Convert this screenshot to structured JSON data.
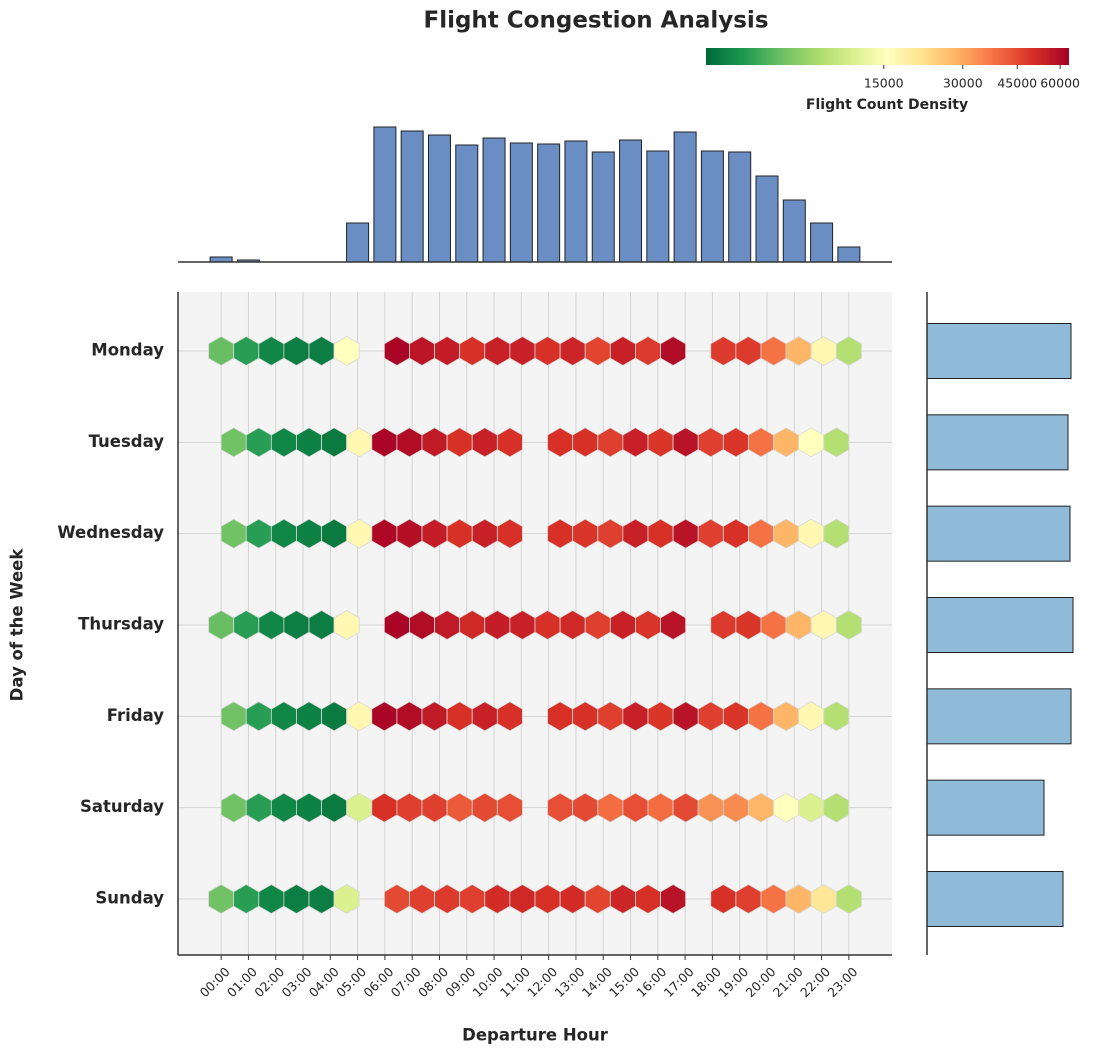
{
  "chart_data": {
    "type": "hexbin",
    "title": "Flight Congestion Analysis",
    "x_label": "Departure Hour",
    "y_label": "Day of the Week",
    "categories": [
      "Monday",
      "Tuesday",
      "Wednesday",
      "Thursday",
      "Friday",
      "Saturday",
      "Sunday"
    ],
    "xlim": [
      -1.58,
      24.58
    ],
    "xticks": [
      {
        "value": 0,
        "label": "00:00"
      },
      {
        "value": 1,
        "label": "01:00"
      },
      {
        "value": 2,
        "label": "02:00"
      },
      {
        "value": 3,
        "label": "03:00"
      },
      {
        "value": 4,
        "label": "04:00"
      },
      {
        "value": 5,
        "label": "05:00"
      },
      {
        "value": 6,
        "label": "06:00"
      },
      {
        "value": 7,
        "label": "07:00"
      },
      {
        "value": 8,
        "label": "08:00"
      },
      {
        "value": 9,
        "label": "09:00"
      },
      {
        "value": 10,
        "label": "10:00"
      },
      {
        "value": 11,
        "label": "11:00"
      },
      {
        "value": 12,
        "label": "12:00"
      },
      {
        "value": 13,
        "label": "13:00"
      },
      {
        "value": 14,
        "label": "14:00"
      },
      {
        "value": 15,
        "label": "15:00"
      },
      {
        "value": 16,
        "label": "16:00"
      },
      {
        "value": 17,
        "label": "17:00"
      },
      {
        "value": 18,
        "label": "18:00"
      },
      {
        "value": 19,
        "label": "19:00"
      },
      {
        "value": 20,
        "label": "20:00"
      },
      {
        "value": 21,
        "label": "21:00"
      },
      {
        "value": 22,
        "label": "22:00"
      },
      {
        "value": 23,
        "label": "23:00"
      }
    ],
    "grid": true,
    "rows": [
      {
        "x": [
          0,
          0.92,
          1.84,
          2.76,
          3.68,
          4.6,
          6.44,
          7.36,
          8.28,
          9.2,
          10.12,
          11.04,
          11.96,
          12.88,
          13.8,
          14.72,
          15.64,
          16.56,
          18.4,
          19.32,
          20.24,
          21.16,
          22.08,
          23.0
        ],
        "values": [
          4500,
          2800,
          2000,
          1800,
          1800,
          15500,
          62000,
          57000,
          55000,
          50000,
          54000,
          54000,
          50000,
          53000,
          46000,
          54000,
          48000,
          60000,
          48000,
          48000,
          38000,
          28000,
          17000,
          8000
        ]
      },
      {
        "x": [
          0.46,
          1.38,
          2.3,
          3.22,
          4.14,
          5.06,
          5.98,
          6.9,
          7.82,
          8.74,
          9.66,
          10.58,
          12.42,
          13.34,
          14.26,
          15.18,
          16.1,
          17.02,
          17.94,
          18.86,
          19.78,
          20.7,
          21.62,
          22.54
        ],
        "values": [
          4800,
          2800,
          2000,
          1900,
          1700,
          17000,
          62000,
          60000,
          56000,
          50000,
          54000,
          50000,
          50000,
          50000,
          47000,
          54000,
          49000,
          58000,
          47000,
          49000,
          38000,
          28000,
          15500,
          8000
        ]
      },
      {
        "x": [
          0.46,
          1.38,
          2.3,
          3.22,
          4.14,
          5.06,
          5.98,
          6.9,
          7.82,
          8.74,
          9.66,
          10.58,
          12.42,
          13.34,
          14.26,
          15.18,
          16.1,
          17.02,
          17.94,
          18.86,
          19.78,
          20.7,
          21.62,
          22.54
        ],
        "values": [
          4800,
          2800,
          2000,
          1900,
          1700,
          17000,
          61000,
          59000,
          55000,
          50000,
          54000,
          50000,
          50000,
          49000,
          47000,
          54000,
          50000,
          58000,
          47000,
          50000,
          38000,
          28000,
          17000,
          8000
        ]
      },
      {
        "x": [
          0,
          0.92,
          1.84,
          2.76,
          3.68,
          4.6,
          6.44,
          7.36,
          8.28,
          9.2,
          10.12,
          11.04,
          11.96,
          12.88,
          13.8,
          14.72,
          15.64,
          16.56,
          18.4,
          19.32,
          20.24,
          21.16,
          22.08,
          23.0
        ],
        "values": [
          4500,
          2800,
          2000,
          1800,
          1800,
          17000,
          62000,
          60000,
          56000,
          52000,
          55000,
          54000,
          50000,
          52000,
          47000,
          54000,
          49000,
          58000,
          48000,
          49000,
          38000,
          28000,
          17000,
          8000
        ]
      },
      {
        "x": [
          0.46,
          1.38,
          2.3,
          3.22,
          4.14,
          5.06,
          5.98,
          6.9,
          7.82,
          8.74,
          9.66,
          10.58,
          12.42,
          13.34,
          14.26,
          15.18,
          16.1,
          17.02,
          17.94,
          18.86,
          19.78,
          20.7,
          21.62,
          22.54
        ],
        "values": [
          4800,
          2800,
          2000,
          1900,
          1700,
          17000,
          62000,
          60000,
          56000,
          50000,
          54000,
          50000,
          50000,
          50000,
          47000,
          54000,
          49000,
          58000,
          47000,
          49000,
          38000,
          28000,
          17000,
          8000
        ]
      },
      {
        "x": [
          0.46,
          1.38,
          2.3,
          3.22,
          4.14,
          5.06,
          5.98,
          6.9,
          7.82,
          8.74,
          9.66,
          10.58,
          12.42,
          13.34,
          14.26,
          15.18,
          16.1,
          17.02,
          17.94,
          18.86,
          19.78,
          20.7,
          21.62,
          22.54
        ],
        "values": [
          4800,
          2800,
          2000,
          1900,
          1700,
          11000,
          50000,
          47000,
          47000,
          42000,
          45000,
          44000,
          44000,
          45000,
          39000,
          44000,
          39000,
          45000,
          33000,
          34000,
          28000,
          15500,
          11000,
          8000
        ]
      },
      {
        "x": [
          0,
          0.92,
          1.84,
          2.76,
          3.68,
          4.6,
          6.44,
          7.36,
          8.28,
          9.2,
          10.12,
          11.04,
          11.96,
          12.88,
          13.8,
          14.72,
          15.64,
          16.56,
          18.4,
          19.32,
          20.24,
          21.16,
          22.08,
          23.0
        ],
        "values": [
          4800,
          2800,
          2000,
          1800,
          1800,
          11000,
          45000,
          47000,
          48000,
          47000,
          51000,
          52000,
          50000,
          51000,
          46000,
          53000,
          50000,
          58000,
          50000,
          47000,
          38000,
          28000,
          20000,
          8000
        ]
      }
    ],
    "colorbar": {
      "label": "Flight Count Density",
      "norm": "power",
      "gamma": 0.3,
      "clim": [
        1300,
        63500
      ],
      "ticks": [
        15000,
        30000,
        45000,
        60000
      ],
      "colormap": [
        "#006837",
        "#1a9850",
        "#66bd63",
        "#a6d96a",
        "#d9ef8b",
        "#ffffbf",
        "#fee08b",
        "#fdae61",
        "#f46d43",
        "#d73027",
        "#a50026"
      ]
    },
    "marginal_x": {
      "values": [
        5,
        2,
        0,
        0,
        0,
        39,
        135,
        131,
        127,
        117,
        124,
        119,
        118,
        121,
        110,
        122,
        111,
        130,
        111,
        110,
        86,
        62,
        39,
        15
      ],
      "ylim": [
        0,
        142
      ],
      "color": "#6a8ec4"
    },
    "marginal_y": {
      "values": [
        144,
        141,
        143,
        146,
        144,
        117,
        136
      ],
      "xlim": [
        0,
        150
      ],
      "color": "#8fbbd9"
    }
  }
}
